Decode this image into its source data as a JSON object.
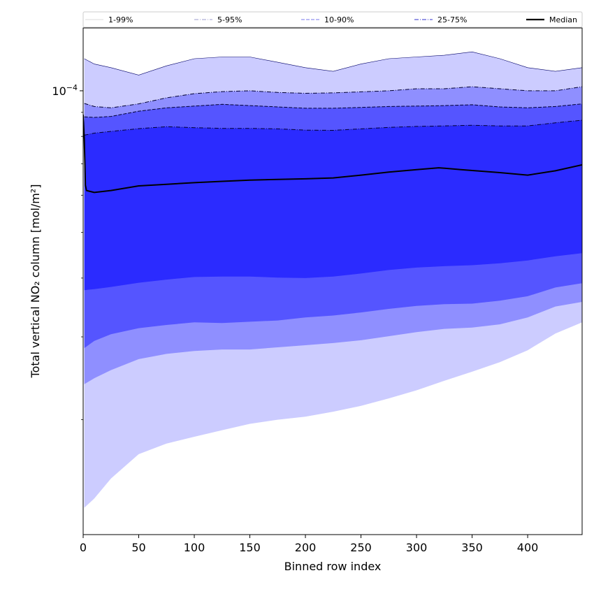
{
  "chart_data": {
    "type": "area",
    "xlabel": "Binned row index",
    "ylabel": "Total vertical NO₂ column [mol/m²]",
    "yscale": "log",
    "xlim": [
      0,
      449
    ],
    "ylim": [
      1.14e-05,
      0.000136
    ],
    "x_ticks": [
      0,
      50,
      100,
      150,
      200,
      250,
      300,
      350,
      400
    ],
    "y_major_tick": {
      "value": 0.0001,
      "label_base": "10",
      "label_exp": "−4"
    },
    "y_minor_ticks": [
      2e-05,
      3e-05,
      4e-05,
      5e-05,
      6e-05,
      7e-05,
      8e-05,
      9e-05
    ],
    "x": [
      1,
      10,
      25,
      50,
      75,
      100,
      125,
      150,
      175,
      200,
      225,
      250,
      275,
      300,
      325,
      350,
      375,
      400,
      425,
      449
    ],
    "band_colors": {
      "1-99%": "#ccccff",
      "5-95%": "#8f8fff",
      "10-90%": "#5555ff",
      "25-75%": "#2b2bff"
    },
    "bands": [
      {
        "name": "1-99%",
        "lower": [
          1.3e-05,
          1.36e-05,
          1.5e-05,
          1.69e-05,
          1.78e-05,
          1.84e-05,
          1.9e-05,
          1.96e-05,
          2e-05,
          2.03e-05,
          2.08e-05,
          2.14e-05,
          2.22e-05,
          2.31e-05,
          2.42e-05,
          2.53e-05,
          2.65e-05,
          2.81e-05,
          3.05e-05,
          3.22e-05
        ],
        "upper": [
          0.000117,
          0.000114,
          0.000112,
          0.000108,
          0.000113,
          0.000117,
          0.000118,
          0.000118,
          0.000115,
          0.000112,
          0.00011,
          0.000114,
          0.000117,
          0.000118,
          0.000119,
          0.000121,
          0.000117,
          0.000112,
          0.00011,
          0.000112
        ]
      },
      {
        "name": "5-95%",
        "lower": [
          2.38e-05,
          2.45e-05,
          2.55e-05,
          2.69e-05,
          2.76e-05,
          2.8e-05,
          2.82e-05,
          2.82e-05,
          2.85e-05,
          2.88e-05,
          2.91e-05,
          2.95e-05,
          3.01e-05,
          3.07e-05,
          3.12e-05,
          3.14e-05,
          3.19e-05,
          3.3e-05,
          3.48e-05,
          3.56e-05
        ],
        "upper": [
          9.4e-05,
          9.26e-05,
          9.2e-05,
          9.38e-05,
          9.66e-05,
          9.86e-05,
          9.96e-05,
          0.0001,
          9.92e-05,
          9.88e-05,
          9.9e-05,
          9.95e-05,
          0.0001,
          0.000101,
          0.000101,
          0.000102,
          0.000101,
          0.0001,
          0.0001,
          0.000102
        ]
      },
      {
        "name": "10-90%",
        "lower": [
          2.84e-05,
          2.94e-05,
          3.04e-05,
          3.13e-05,
          3.18e-05,
          3.22e-05,
          3.21e-05,
          3.23e-05,
          3.25e-05,
          3.3e-05,
          3.33e-05,
          3.38e-05,
          3.44e-05,
          3.49e-05,
          3.52e-05,
          3.53e-05,
          3.58e-05,
          3.66e-05,
          3.82e-05,
          3.9e-05
        ],
        "upper": [
          8.8e-05,
          8.78e-05,
          8.82e-05,
          9.05e-05,
          9.2e-05,
          9.28e-05,
          9.36e-05,
          9.3e-05,
          9.24e-05,
          9.18e-05,
          9.18e-05,
          9.22e-05,
          9.26e-05,
          9.28e-05,
          9.3e-05,
          9.34e-05,
          9.24e-05,
          9.2e-05,
          9.26e-05,
          9.38e-05
        ]
      },
      {
        "name": "25-75%",
        "lower": [
          3.77e-05,
          3.79e-05,
          3.83e-05,
          3.91e-05,
          3.97e-05,
          4.02e-05,
          4.03e-05,
          4.03e-05,
          4.01e-05,
          4e-05,
          4.03e-05,
          4.09e-05,
          4.16e-05,
          4.21e-05,
          4.24e-05,
          4.26e-05,
          4.3e-05,
          4.36e-05,
          4.45e-05,
          4.52e-05
        ],
        "upper": [
          8.05e-05,
          8.13e-05,
          8.2e-05,
          8.31e-05,
          8.39e-05,
          8.35e-05,
          8.32e-05,
          8.32e-05,
          8.3e-05,
          8.25e-05,
          8.24e-05,
          8.3e-05,
          8.36e-05,
          8.4e-05,
          8.42e-05,
          8.45e-05,
          8.42e-05,
          8.42e-05,
          8.55e-05,
          8.66e-05
        ]
      }
    ],
    "median": {
      "name": "Median",
      "x": [
        0,
        1,
        2,
        3,
        10,
        25,
        50,
        75,
        100,
        125,
        150,
        175,
        200,
        225,
        250,
        275,
        300,
        320,
        340,
        375,
        400,
        425,
        449
      ],
      "values": [
        8.9e-05,
        7.9e-05,
        6.3e-05,
        6.14e-05,
        6.08e-05,
        6.14e-05,
        6.28e-05,
        6.33e-05,
        6.38e-05,
        6.42e-05,
        6.46e-05,
        6.48e-05,
        6.5e-05,
        6.53e-05,
        6.62e-05,
        6.72e-05,
        6.8e-05,
        6.86e-05,
        6.8e-05,
        6.7e-05,
        6.62e-05,
        6.76e-05,
        6.96e-05
      ]
    },
    "legend": [
      {
        "label": "1-99%",
        "color": "#e2e2e2",
        "style": "solid"
      },
      {
        "label": "5-95%",
        "color": "#b0b0d8",
        "style": "dashdot"
      },
      {
        "label": "10-90%",
        "color": "#9595f0",
        "style": "dashed"
      },
      {
        "label": "25-75%",
        "color": "#5a5ad8",
        "style": "dashdot"
      },
      {
        "label": "Median",
        "color": "#000000",
        "style": "solid-thick"
      }
    ],
    "legend_position": "top"
  }
}
